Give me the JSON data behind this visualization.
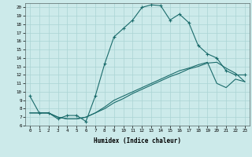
{
  "xlabel": "Humidex (Indice chaleur)",
  "xlim": [
    -0.5,
    23.5
  ],
  "ylim": [
    6,
    20.5
  ],
  "yticks": [
    6,
    7,
    8,
    9,
    10,
    11,
    12,
    13,
    14,
    15,
    16,
    17,
    18,
    19,
    20
  ],
  "xticks": [
    0,
    1,
    2,
    3,
    4,
    5,
    6,
    7,
    8,
    9,
    10,
    11,
    12,
    13,
    14,
    15,
    16,
    17,
    18,
    19,
    20,
    21,
    22,
    23
  ],
  "bg_color": "#cceaea",
  "grid_color": "#aad4d4",
  "line_color": "#1a6b6b",
  "line1": [
    9.5,
    7.5,
    7.5,
    6.8,
    7.2,
    7.2,
    6.5,
    9.5,
    13.3,
    16.5,
    17.5,
    18.5,
    20.0,
    20.3,
    20.2,
    18.5,
    19.2,
    18.2,
    15.5,
    14.5,
    14.0,
    12.5,
    12.0,
    12.0
  ],
  "line2": [
    7.5,
    7.5,
    7.5,
    7.0,
    6.8,
    6.8,
    7.0,
    7.5,
    8.0,
    8.7,
    9.2,
    9.8,
    10.3,
    10.8,
    11.3,
    11.8,
    12.2,
    12.7,
    13.0,
    13.4,
    13.5,
    12.8,
    12.2,
    11.2
  ],
  "line3": [
    7.5,
    7.5,
    7.5,
    7.0,
    6.8,
    6.8,
    7.0,
    7.5,
    8.2,
    9.0,
    9.5,
    10.0,
    10.5,
    11.0,
    11.5,
    12.0,
    12.5,
    12.8,
    13.2,
    13.5,
    11.0,
    10.5,
    11.5,
    11.2
  ],
  "marker": "+",
  "markersize": 3,
  "markeredgewidth": 0.8,
  "linewidth": 0.8
}
